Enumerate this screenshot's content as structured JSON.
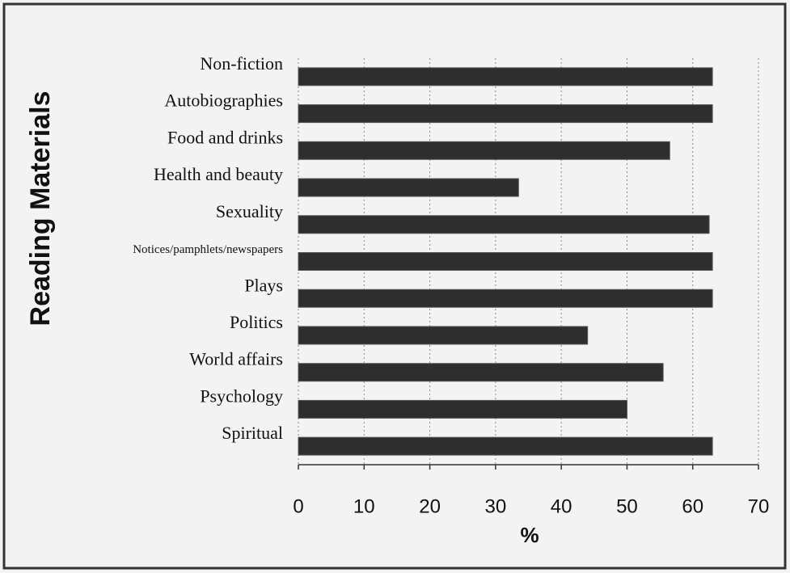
{
  "chart_data": {
    "type": "bar",
    "orientation": "horizontal",
    "xlabel": "%",
    "ylabel": "Reading Materials",
    "categories": [
      "Non-fiction",
      "Autobiographies",
      "Food and drinks",
      "Health and beauty",
      "Sexuality",
      "Notices/pamphlets/newspapers",
      "Plays",
      "Politics",
      "World affairs",
      "Psychology",
      "Spiritual"
    ],
    "values": [
      63,
      63,
      56.5,
      33.5,
      62.5,
      63,
      63,
      44,
      55.5,
      50,
      63
    ],
    "color": "#2e2e2e",
    "xlim": [
      0,
      70
    ],
    "xticks": [
      0,
      10,
      20,
      30,
      40,
      50,
      60,
      70
    ],
    "grid": true
  }
}
